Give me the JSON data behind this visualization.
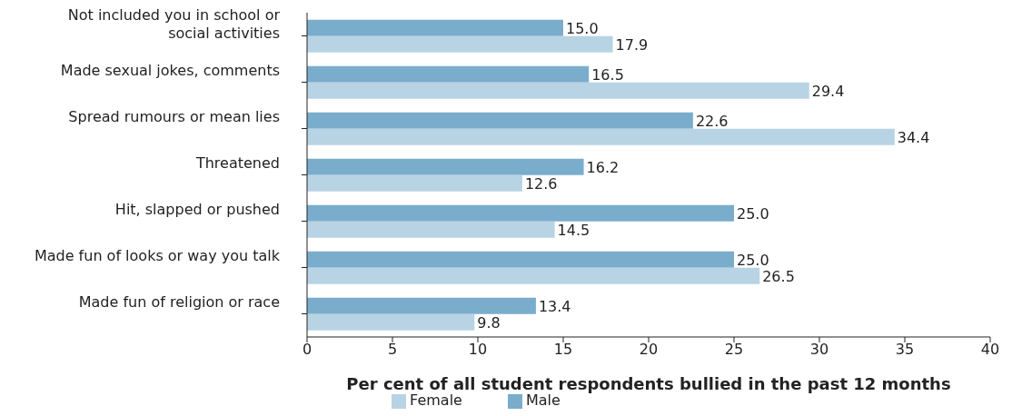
{
  "chart_data": {
    "type": "bar",
    "orientation": "horizontal",
    "xlabel": "Per cent of all student respondents bullied in the past 12 months",
    "categories": [
      "Not included you in school or social activities",
      "Made sexual jokes, comments",
      "Spread rumours or mean lies",
      "Threatened",
      "Hit, slapped or pushed",
      "Made fun of looks or way you talk",
      "Made fun of religion or race"
    ],
    "series": [
      {
        "name": "Male",
        "color": "#7aadcc",
        "values": [
          15.0,
          16.5,
          22.6,
          16.2,
          25.0,
          25.0,
          13.4
        ],
        "value_labels": [
          "15.0",
          "16.5",
          "22.6",
          "16.2",
          "25.0",
          "25.0",
          "13.4"
        ]
      },
      {
        "name": "Female",
        "color": "#b8d3e3",
        "values": [
          17.9,
          29.4,
          34.4,
          12.6,
          14.5,
          26.5,
          9.8
        ],
        "value_labels": [
          "17.9",
          "29.4",
          "34.4",
          "12.6",
          "14.5",
          "26.5",
          "9.8"
        ]
      }
    ],
    "xlim": [
      0,
      40
    ],
    "xticks": [
      0,
      5,
      10,
      15,
      20,
      25,
      30,
      35,
      40
    ],
    "grid": false,
    "legend": "bottom"
  }
}
